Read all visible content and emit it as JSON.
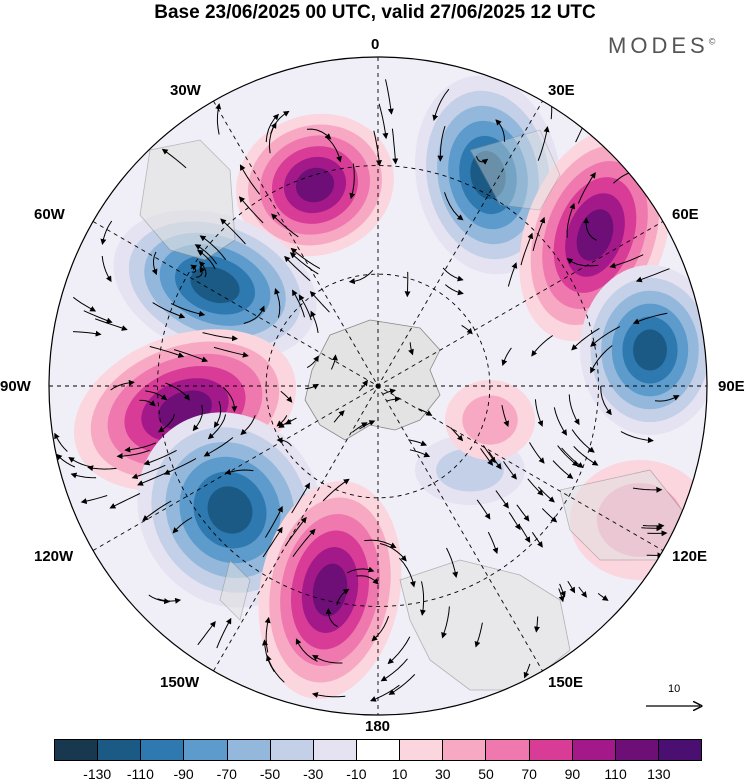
{
  "header": {
    "title": "Base 23/06/2025 00 UTC, valid 27/06/2025 12 UTC",
    "brand": "MODES",
    "brand_mark": "©"
  },
  "map": {
    "longitude_labels": [
      "0",
      "30E",
      "60E",
      "90E",
      "120E",
      "150E",
      "180",
      "150W",
      "120W",
      "90W",
      "60W",
      "30W"
    ]
  },
  "reference_vector": {
    "label": "10"
  },
  "colorbar": {
    "colors": [
      "#17384f",
      "#1b5a85",
      "#2e7ab0",
      "#5c9bcb",
      "#93b8dc",
      "#c3d0e7",
      "#e5e3f1",
      "#ffffff",
      "#fbd6de",
      "#f7a9c3",
      "#ef79ae",
      "#d83c97",
      "#a4198a",
      "#6e0f78",
      "#4b0f72"
    ],
    "tick_labels": [
      "-130",
      "-110",
      "-90",
      "-70",
      "-50",
      "-30",
      "-10",
      "10",
      "30",
      "50",
      "70",
      "90",
      "110",
      "130"
    ]
  }
}
